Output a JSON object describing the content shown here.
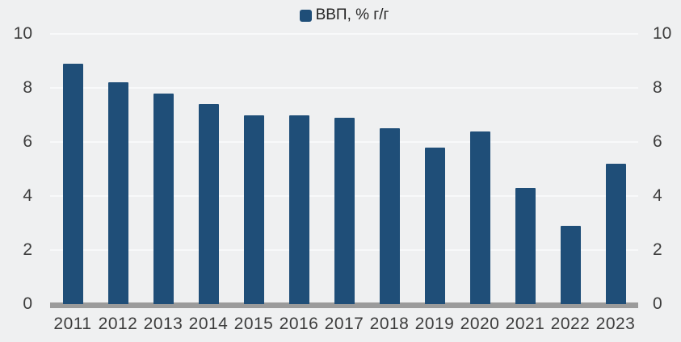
{
  "legend": {
    "label": "ВВП, % г/г"
  },
  "chart_data": {
    "type": "bar",
    "title": "",
    "xlabel": "",
    "ylabel": "",
    "categories": [
      "2011",
      "2012",
      "2013",
      "2014",
      "2015",
      "2016",
      "2017",
      "2018",
      "2019",
      "2020",
      "2021",
      "2022",
      "2023"
    ],
    "series": [
      {
        "name": "ВВП, % г/г",
        "values": [
          8.9,
          8.2,
          7.8,
          7.4,
          7.0,
          7.0,
          6.9,
          6.5,
          5.8,
          6.4,
          4.3,
          2.9,
          5.2
        ]
      }
    ],
    "ylim": [
      0,
      10
    ],
    "yticks": [
      0,
      2,
      4,
      6,
      8,
      10
    ],
    "grid": "horizontal",
    "legend_position": "top-center",
    "y_axis_sides": "both"
  },
  "colors": {
    "background": "#eff0f1",
    "bar": "#1f4e78",
    "baseline": "#9b9b9b",
    "gridline": "#f8f9fa",
    "axis_text": "#3c3c3c",
    "legend_text": "#262626"
  }
}
